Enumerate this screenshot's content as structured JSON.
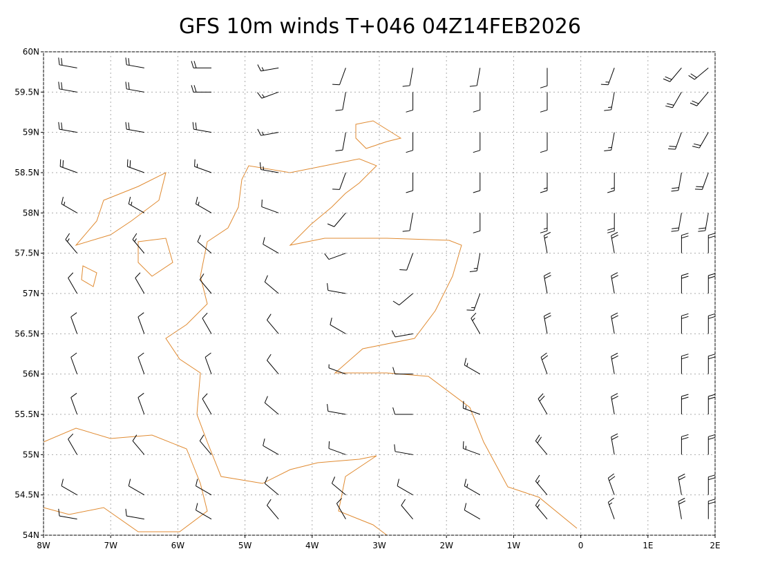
{
  "chart_data": {
    "type": "windbarb",
    "title": "GFS 10m winds T+046 04Z14FEB2026",
    "xlim": [
      -8,
      2
    ],
    "ylim": [
      54,
      60
    ],
    "xticks": [
      {
        "value": -8,
        "label": "8W"
      },
      {
        "value": -7,
        "label": "7W"
      },
      {
        "value": -6,
        "label": "6W"
      },
      {
        "value": -5,
        "label": "5W"
      },
      {
        "value": -4,
        "label": "4W"
      },
      {
        "value": -3,
        "label": "3W"
      },
      {
        "value": -2,
        "label": "2W"
      },
      {
        "value": -1,
        "label": "1W"
      },
      0,
      {
        "value": 1,
        "label": "1E"
      },
      {
        "value": 2,
        "label": "2E"
      }
    ],
    "yticks": [
      {
        "value": 54,
        "label": "54N"
      },
      {
        "value": 54.5,
        "label": "54.5N"
      },
      {
        "value": 55,
        "label": "55N"
      },
      {
        "value": 55.5,
        "label": "55.5N"
      },
      {
        "value": 56,
        "label": "56N"
      },
      {
        "value": 56.5,
        "label": "56.5N"
      },
      {
        "value": 57,
        "label": "57N"
      },
      {
        "value": 57.5,
        "label": "57.5N"
      },
      {
        "value": 58,
        "label": "58N"
      },
      {
        "value": 58.5,
        "label": "58.5N"
      },
      {
        "value": 59,
        "label": "59N"
      },
      {
        "value": 59.5,
        "label": "59.5N"
      },
      {
        "value": 60,
        "label": "60N"
      }
    ],
    "grid": true,
    "lons": [
      -7.5,
      -6.5,
      -5.5,
      -4.5,
      -3.5,
      -2.5,
      -1.5,
      -0.5,
      0.5,
      1.5,
      1.9
    ],
    "lats": [
      59.8,
      59.5,
      59,
      58.5,
      58,
      57.5,
      57,
      56.5,
      56,
      55.5,
      55,
      54.5,
      54.2
    ],
    "direction": [
      [
        280,
        280,
        270,
        260,
        200,
        190,
        190,
        180,
        200,
        220,
        230
      ],
      [
        280,
        280,
        270,
        250,
        190,
        180,
        180,
        180,
        190,
        210,
        220
      ],
      [
        280,
        280,
        280,
        260,
        190,
        180,
        180,
        180,
        190,
        200,
        210
      ],
      [
        290,
        290,
        290,
        280,
        200,
        180,
        180,
        180,
        180,
        190,
        200
      ],
      [
        300,
        300,
        300,
        290,
        220,
        190,
        180,
        180,
        180,
        190,
        190
      ],
      [
        320,
        320,
        310,
        300,
        250,
        200,
        190,
        350,
        350,
        0,
        0
      ],
      [
        330,
        330,
        320,
        310,
        280,
        230,
        200,
        350,
        350,
        0,
        0
      ],
      [
        340,
        340,
        330,
        320,
        300,
        260,
        330,
        350,
        350,
        0,
        0
      ],
      [
        340,
        340,
        340,
        320,
        290,
        270,
        300,
        340,
        350,
        0,
        0
      ],
      [
        340,
        340,
        330,
        310,
        280,
        270,
        290,
        330,
        350,
        0,
        0
      ],
      [
        330,
        320,
        320,
        300,
        290,
        280,
        290,
        320,
        350,
        0,
        0
      ],
      [
        300,
        300,
        300,
        310,
        310,
        300,
        300,
        320,
        340,
        350,
        0
      ],
      [
        280,
        280,
        300,
        320,
        330,
        320,
        300,
        320,
        340,
        350,
        0
      ]
    ],
    "speed": [
      [
        20,
        20,
        20,
        15,
        10,
        10,
        10,
        10,
        15,
        20,
        20
      ],
      [
        20,
        20,
        20,
        15,
        10,
        10,
        10,
        10,
        15,
        20,
        20
      ],
      [
        20,
        20,
        20,
        15,
        10,
        10,
        10,
        10,
        15,
        20,
        20
      ],
      [
        20,
        20,
        15,
        15,
        10,
        10,
        10,
        15,
        15,
        20,
        20
      ],
      [
        15,
        15,
        15,
        10,
        10,
        10,
        10,
        15,
        20,
        20,
        20
      ],
      [
        15,
        15,
        10,
        10,
        10,
        10,
        15,
        15,
        20,
        20,
        20
      ],
      [
        10,
        10,
        10,
        10,
        10,
        10,
        15,
        20,
        20,
        20,
        20
      ],
      [
        10,
        10,
        10,
        10,
        10,
        10,
        15,
        20,
        20,
        20,
        20
      ],
      [
        10,
        10,
        10,
        10,
        5,
        10,
        15,
        20,
        20,
        20,
        20
      ],
      [
        10,
        10,
        10,
        10,
        10,
        10,
        15,
        20,
        20,
        20,
        20
      ],
      [
        10,
        10,
        10,
        10,
        10,
        10,
        15,
        20,
        20,
        20,
        20
      ],
      [
        10,
        10,
        10,
        10,
        10,
        10,
        15,
        15,
        20,
        20,
        20
      ],
      [
        10,
        10,
        10,
        10,
        10,
        10,
        10,
        15,
        15,
        20,
        20
      ]
    ]
  }
}
